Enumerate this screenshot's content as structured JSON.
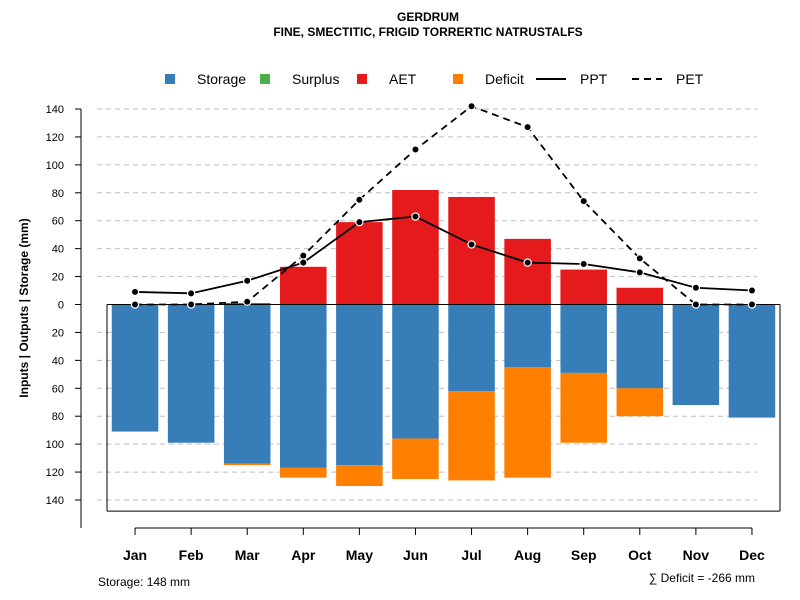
{
  "chart_data": {
    "type": "bar",
    "title": "GERDRUM",
    "subtitle": "FINE, SMECTITIC, FRIGID TORRERTIC NATRUSTALFS",
    "ylabel": "Inputs | Outputs | Storage     (mm)",
    "categories": [
      "Jan",
      "Feb",
      "Mar",
      "Apr",
      "May",
      "Jun",
      "Jul",
      "Aug",
      "Sep",
      "Oct",
      "Nov",
      "Dec"
    ],
    "y_ticks": [
      "140",
      "120",
      "100",
      "80",
      "60",
      "40",
      "20",
      "0",
      "20",
      "40",
      "60",
      "80",
      "100",
      "120",
      "140"
    ],
    "ylim_up": 140,
    "ylim_down": 148,
    "legend": [
      {
        "key": "storage",
        "label": "Storage",
        "type": "box"
      },
      {
        "key": "surplus",
        "label": "Surplus",
        "type": "box"
      },
      {
        "key": "aet",
        "label": "AET",
        "type": "box"
      },
      {
        "key": "deficit",
        "label": "Deficit",
        "type": "box"
      },
      {
        "key": "ppt",
        "label": "PPT",
        "type": "line-solid"
      },
      {
        "key": "pet",
        "label": "PET",
        "type": "line-dashed"
      }
    ],
    "series": {
      "aet": [
        0,
        0,
        1,
        27,
        59,
        82,
        77,
        47,
        25,
        12,
        0,
        0
      ],
      "storage": [
        91,
        99,
        114,
        117,
        115,
        96,
        62,
        45,
        49,
        60,
        72,
        81
      ],
      "deficit": [
        0,
        0,
        1,
        7,
        15,
        29,
        64,
        79,
        50,
        20,
        0,
        0
      ],
      "surplus": [
        0,
        0,
        0,
        0,
        0,
        0,
        0,
        0,
        0,
        0,
        0,
        0
      ],
      "ppt": [
        9,
        8,
        17,
        30,
        59,
        63,
        43,
        30,
        29,
        23,
        12,
        10
      ],
      "pet": [
        0,
        0,
        2,
        35,
        75,
        111,
        142,
        127,
        74,
        33,
        0,
        0
      ]
    },
    "colors": {
      "storage": "#377EB8",
      "surplus": "#4DAF4A",
      "aet": "#E41A1C",
      "deficit": "#FF7F00",
      "line": "#000000",
      "grid": "#BEBEBE"
    },
    "grid": true,
    "legend_position": "top"
  },
  "footer": {
    "storage_text": "Storage: 148 mm",
    "deficit_text": "∑ Deficit = -266 mm"
  }
}
